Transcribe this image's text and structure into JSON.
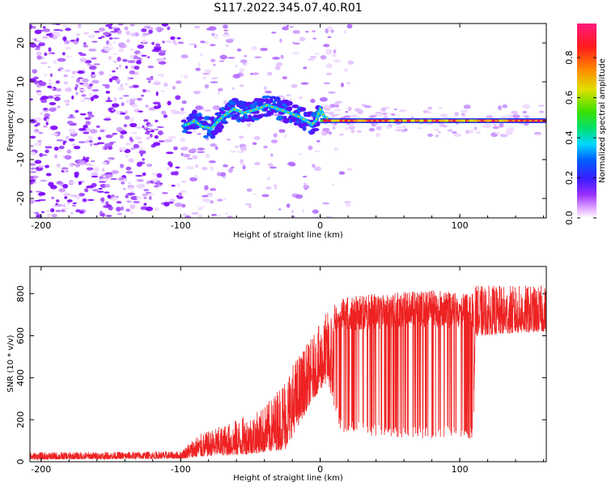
{
  "title": "S117.2022.345.07.40.R01",
  "charts": {
    "spectrogram": {
      "type": "heatmap",
      "xlabel": "Height of straight line (km)",
      "ylabel": "Frequency (Hz)",
      "xlim": [
        -208,
        162
      ],
      "ylim": [
        -25,
        25
      ],
      "xticks": [
        "-200",
        "-100",
        "0",
        "100"
      ],
      "yticks": [
        "-20",
        "-10",
        "0",
        "10",
        "20"
      ],
      "xtick_values": [
        -200,
        -100,
        0,
        100
      ],
      "ytick_values": [
        -20,
        -10,
        0,
        10,
        20
      ],
      "colorbar_label": "Normalized spectral amplitude",
      "colorbar_ticks": [
        "0.0",
        "0.2",
        "0.4",
        "0.6",
        "0.8"
      ],
      "colorbar_tick_values": [
        0.0,
        0.2,
        0.4,
        0.6,
        0.8
      ],
      "colorbar_range": [
        0.0,
        0.97
      ],
      "ridge": [
        [
          -95,
          -1
        ],
        [
          -90,
          0
        ],
        [
          -85,
          -1.5
        ],
        [
          -78,
          -2
        ],
        [
          -70,
          1
        ],
        [
          -62,
          3
        ],
        [
          -55,
          2
        ],
        [
          -45,
          3
        ],
        [
          -38,
          4
        ],
        [
          -30,
          3
        ],
        [
          -22,
          2
        ],
        [
          -15,
          1
        ],
        [
          -10,
          0
        ],
        [
          -6,
          -1
        ],
        [
          -3,
          0
        ],
        [
          0,
          3
        ],
        [
          3,
          1
        ],
        [
          8,
          0
        ],
        [
          20,
          0
        ],
        [
          162,
          0
        ]
      ]
    },
    "snr": {
      "type": "line",
      "xlabel": "Height of straight line (km)",
      "ylabel": "SNR (10 * v/v)",
      "xlim": [
        -208,
        162
      ],
      "ylim": [
        0,
        930
      ],
      "xticks": [
        "-200",
        "-100",
        "0",
        "100"
      ],
      "yticks": [
        "0",
        "200",
        "400",
        "600",
        "800"
      ],
      "xtick_values": [
        -200,
        -100,
        0,
        100
      ],
      "ytick_values": [
        0,
        200,
        400,
        600,
        800
      ],
      "color": "#ee2222",
      "envelope": [
        [
          -208,
          10,
          45
        ],
        [
          -100,
          15,
          50
        ],
        [
          -90,
          20,
          120
        ],
        [
          -75,
          30,
          160
        ],
        [
          -60,
          30,
          200
        ],
        [
          -45,
          40,
          240
        ],
        [
          -35,
          50,
          300
        ],
        [
          -25,
          60,
          420
        ],
        [
          -15,
          180,
          520
        ],
        [
          -5,
          300,
          600
        ],
        [
          5,
          380,
          720
        ],
        [
          15,
          140,
          780
        ],
        [
          40,
          120,
          800
        ],
        [
          80,
          110,
          820
        ],
        [
          110,
          110,
          800
        ],
        [
          111,
          600,
          840
        ],
        [
          162,
          620,
          840
        ]
      ]
    }
  }
}
